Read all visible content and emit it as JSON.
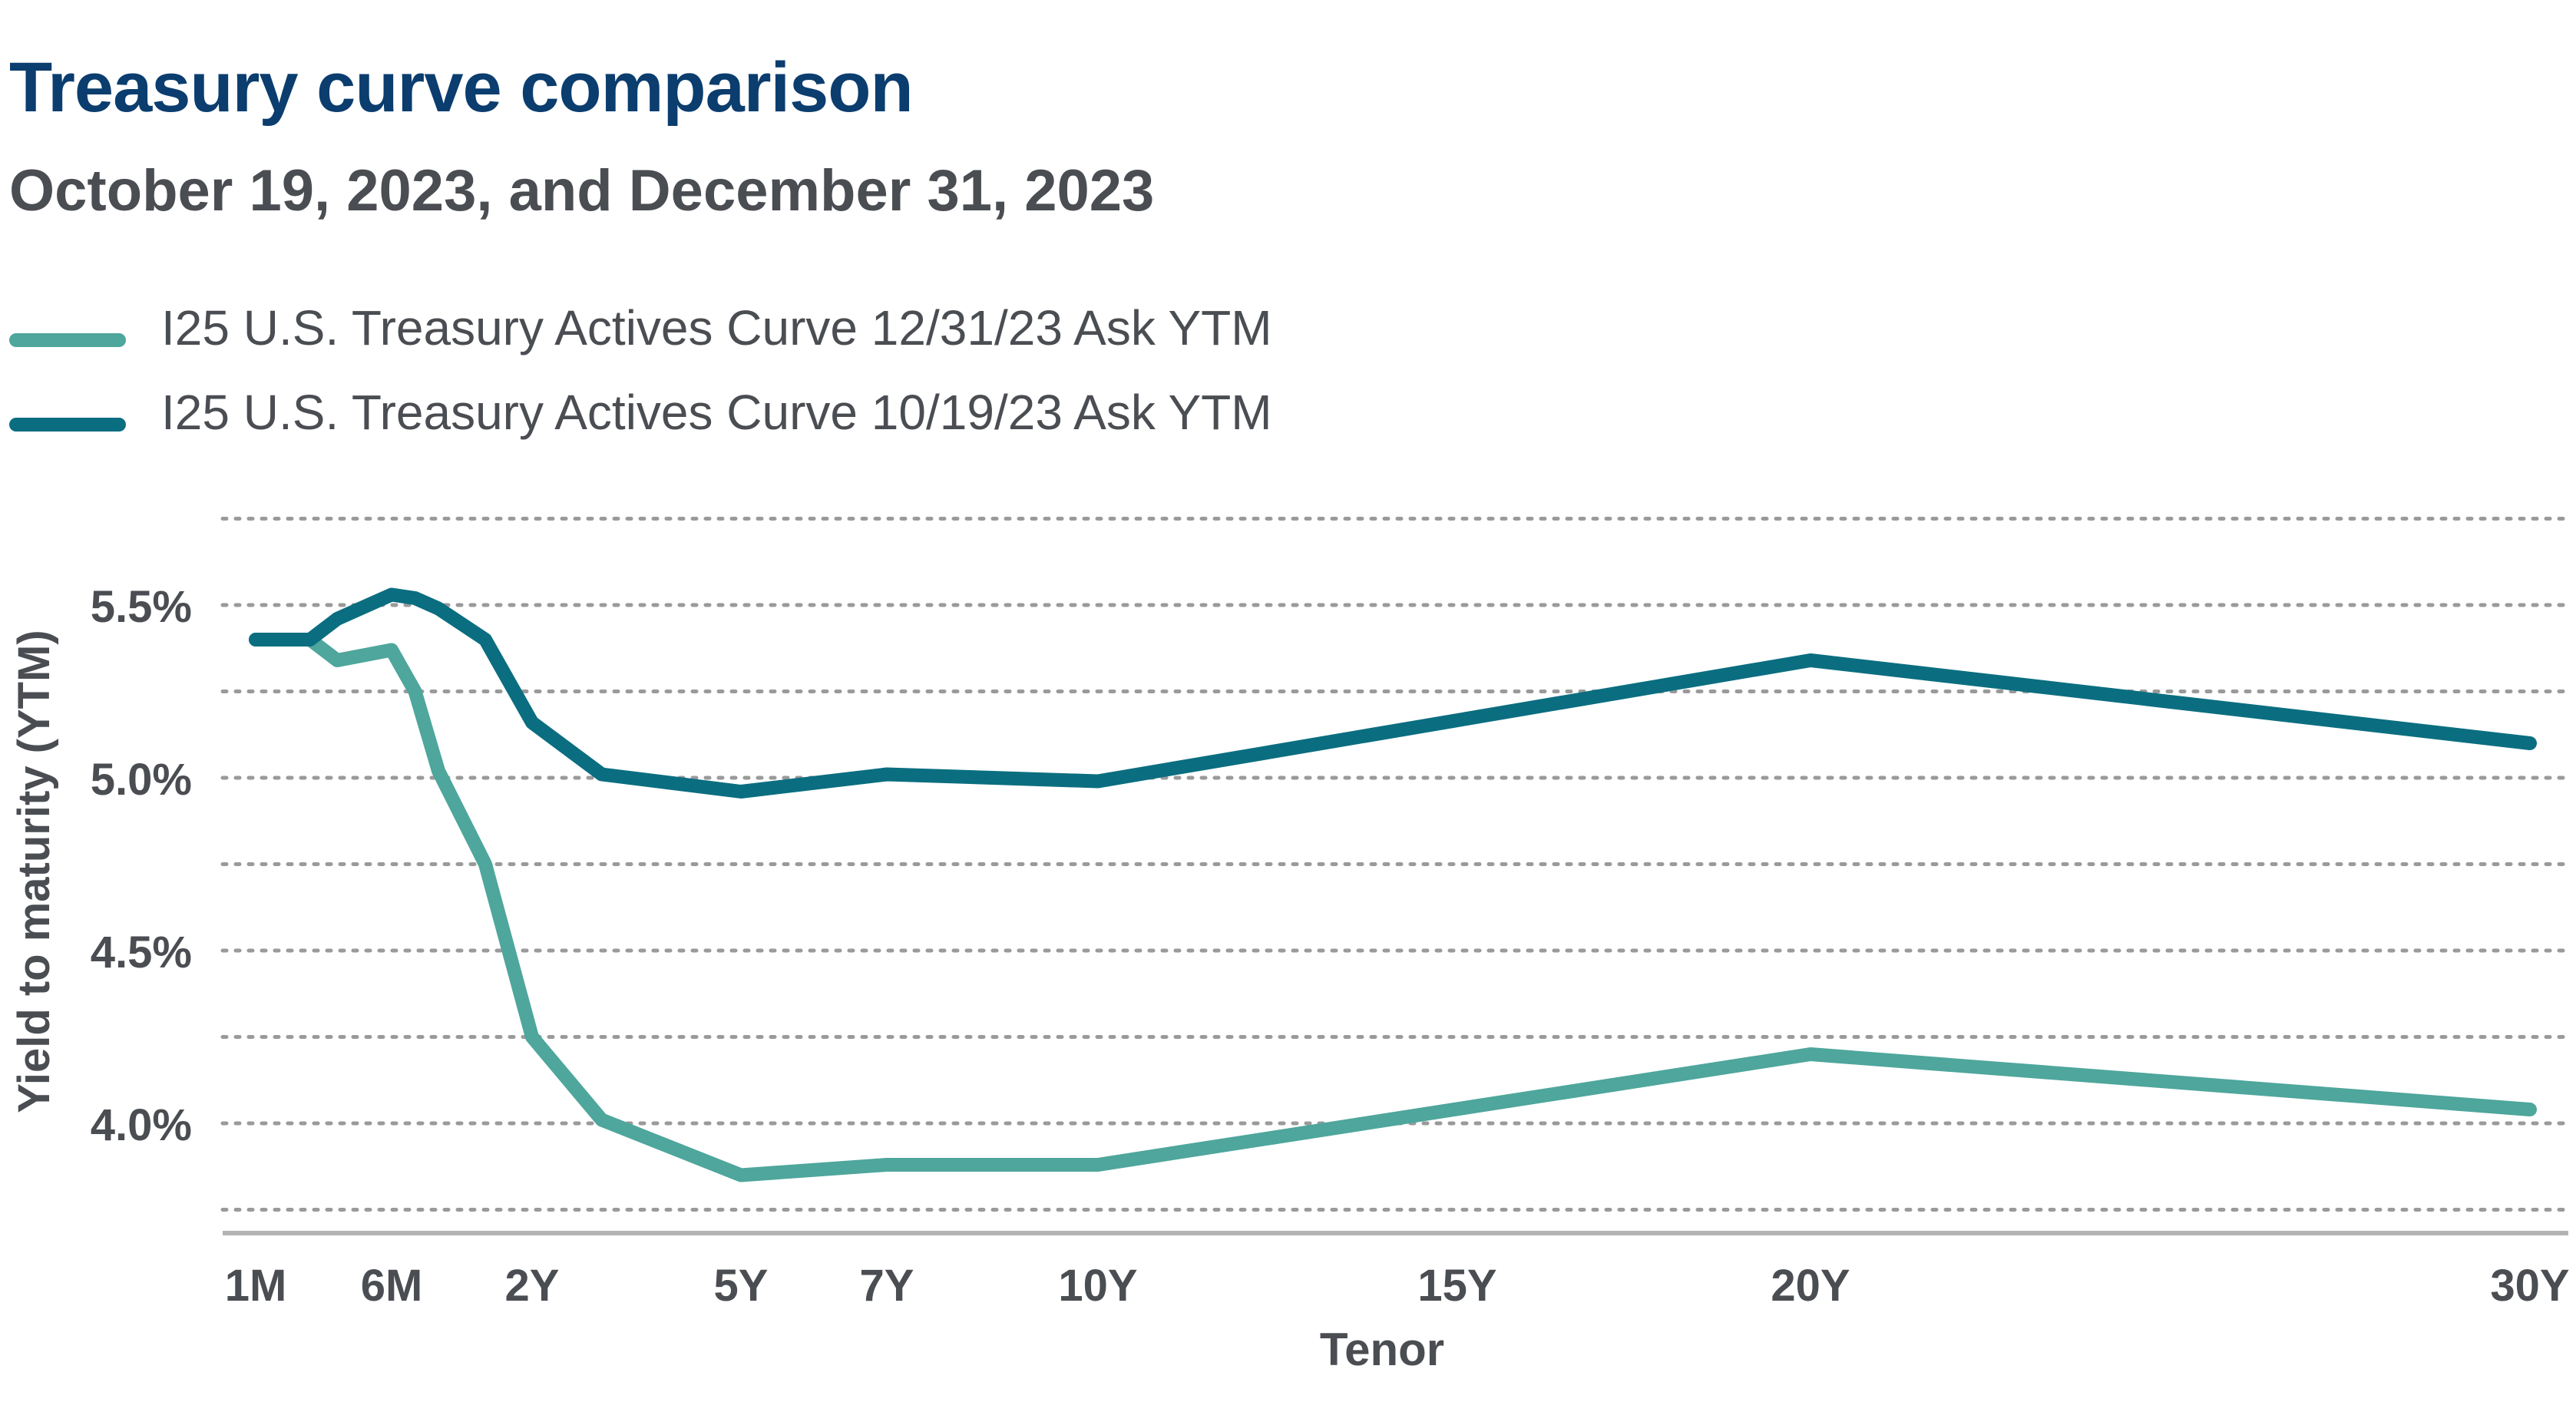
{
  "header": {
    "title": "Treasury curve comparison",
    "subtitle": "October 19, 2023, and December 31, 2023"
  },
  "legend": [
    {
      "label": "I25 U.S. Treasury Actives Curve 12/31/23 Ask YTM",
      "color": "#4ea69c"
    },
    {
      "label": "I25 U.S. Treasury Actives Curve 10/19/23 Ask YTM",
      "color": "#0a6e80"
    }
  ],
  "chart_data": {
    "type": "line",
    "title": "Treasury curve comparison",
    "subtitle": "October 19, 2023, and December 31, 2023",
    "xlabel": "Tenor",
    "ylabel": "Yield to maturity (YTM)",
    "x_scale": "years to maturity",
    "x_ticks": [
      {
        "label": "1M",
        "x": 0.0833
      },
      {
        "label": "6M",
        "x": 0.5
      },
      {
        "label": "2Y",
        "x": 2
      },
      {
        "label": "5Y",
        "x": 5
      },
      {
        "label": "7Y",
        "x": 7
      },
      {
        "label": "10Y",
        "x": 10
      },
      {
        "label": "15Y",
        "x": 15
      },
      {
        "label": "20Y",
        "x": 20
      },
      {
        "label": "30Y",
        "x": 30
      }
    ],
    "y_ticks": [
      {
        "label": "4.0%",
        "y": 4.0
      },
      {
        "label": "4.5%",
        "y": 4.5
      },
      {
        "label": "5.0%",
        "y": 5.0
      },
      {
        "label": "5.5%",
        "y": 5.5
      }
    ],
    "ylim": [
      3.7,
      5.7
    ],
    "grid": true,
    "series": [
      {
        "name": "I25 U.S. Treasury Actives Curve 12/31/23 Ask YTM",
        "color": "#4ea69c",
        "points": [
          {
            "x": 0.0833,
            "y": 5.4
          },
          {
            "x": 0.1667,
            "y": 5.4
          },
          {
            "x": 0.25,
            "y": 5.4
          },
          {
            "x": 0.3333,
            "y": 5.34
          },
          {
            "x": 0.5,
            "y": 5.37
          },
          {
            "x": 0.75,
            "y": 5.25
          },
          {
            "x": 1,
            "y": 5.02
          },
          {
            "x": 1.5,
            "y": 4.75
          },
          {
            "x": 2,
            "y": 4.25
          },
          {
            "x": 3,
            "y": 4.01
          },
          {
            "x": 5,
            "y": 3.85
          },
          {
            "x": 7,
            "y": 3.88
          },
          {
            "x": 10,
            "y": 3.88
          },
          {
            "x": 20,
            "y": 4.2
          },
          {
            "x": 30,
            "y": 4.04
          }
        ]
      },
      {
        "name": "I25 U.S. Treasury Actives Curve 10/19/23 Ask YTM",
        "color": "#0a6e80",
        "points": [
          {
            "x": 0.0833,
            "y": 5.4
          },
          {
            "x": 0.1667,
            "y": 5.4
          },
          {
            "x": 0.25,
            "y": 5.4
          },
          {
            "x": 0.3333,
            "y": 5.46
          },
          {
            "x": 0.5,
            "y": 5.53
          },
          {
            "x": 0.75,
            "y": 5.52
          },
          {
            "x": 1,
            "y": 5.49
          },
          {
            "x": 1.5,
            "y": 5.4
          },
          {
            "x": 2,
            "y": 5.16
          },
          {
            "x": 3,
            "y": 5.01
          },
          {
            "x": 5,
            "y": 4.96
          },
          {
            "x": 7,
            "y": 5.01
          },
          {
            "x": 10,
            "y": 4.99
          },
          {
            "x": 20,
            "y": 5.34
          },
          {
            "x": 30,
            "y": 5.1
          }
        ]
      }
    ]
  }
}
